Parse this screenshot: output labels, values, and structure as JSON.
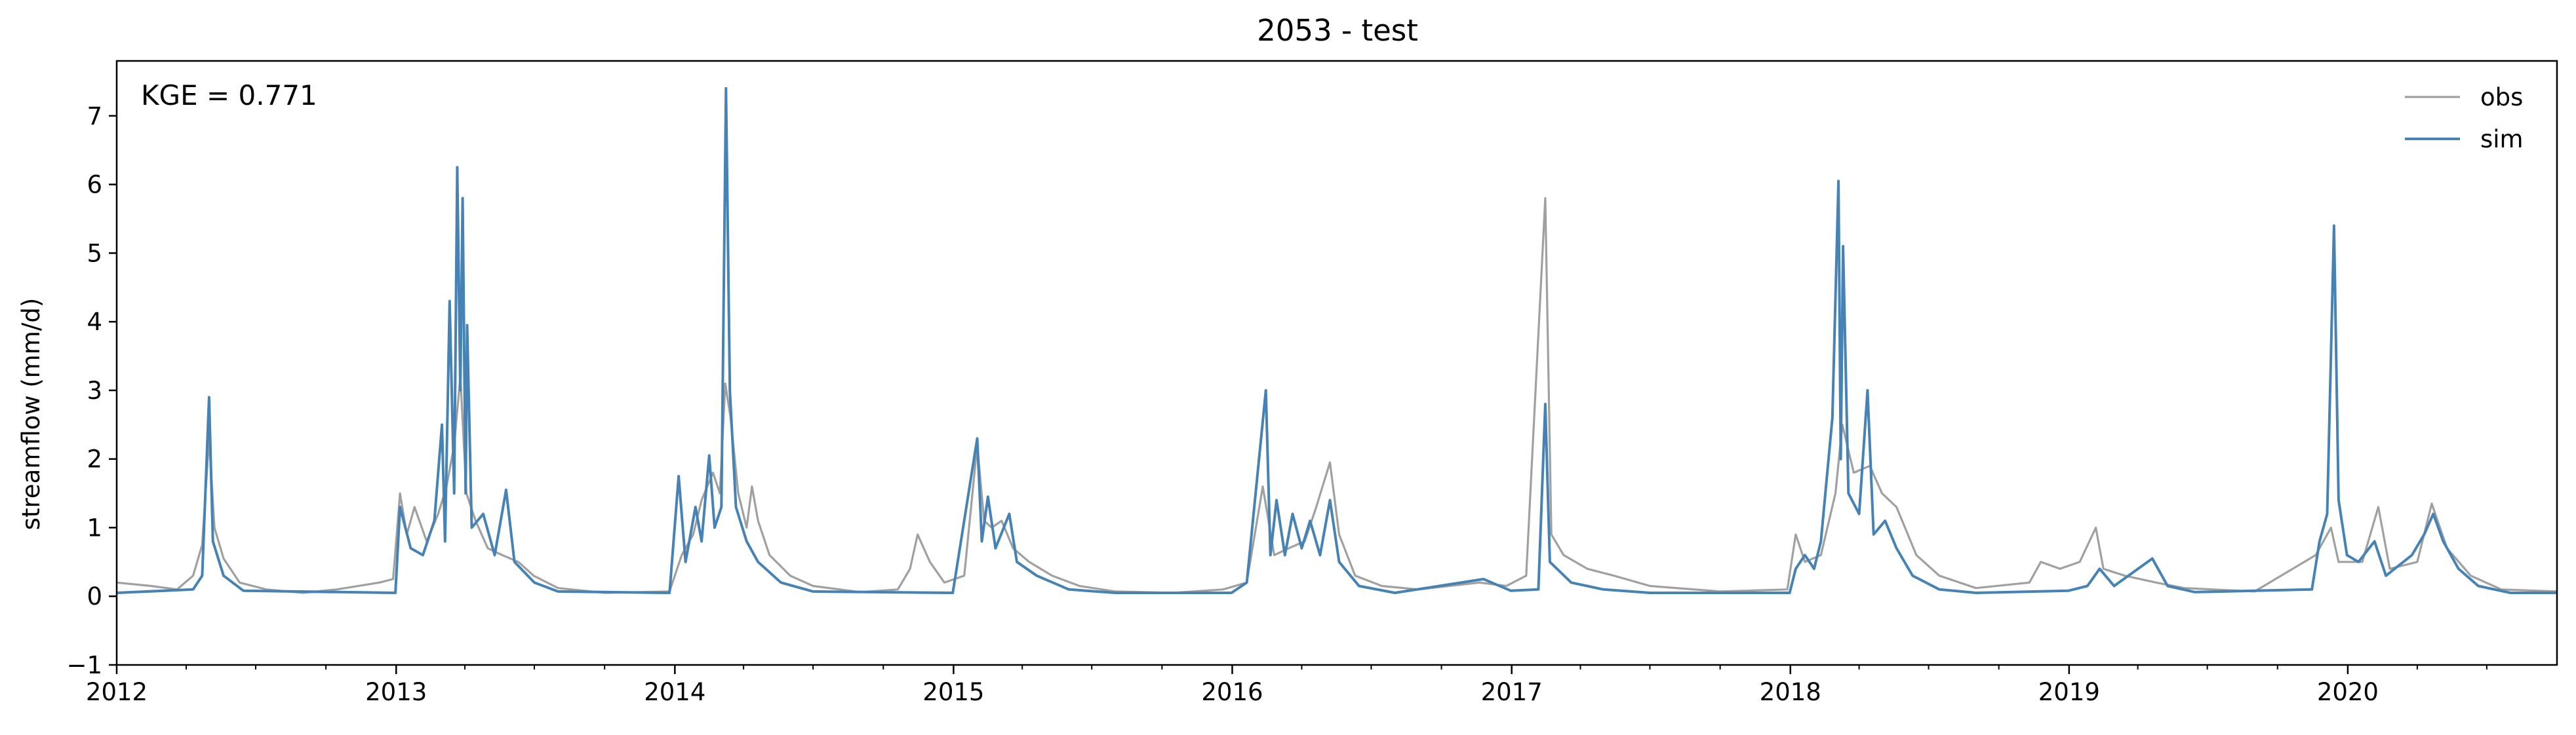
{
  "chart_data": {
    "type": "line",
    "title": "2053 - test",
    "xlabel": "",
    "ylabel": "streamflow (mm/d)",
    "annotation": "KGE = 0.771",
    "xlim": [
      "2012-01-01",
      "2020-10-01"
    ],
    "ylim": [
      -1,
      7.8
    ],
    "x_ticks": [
      "2012",
      "2013",
      "2014",
      "2015",
      "2016",
      "2017",
      "2018",
      "2019",
      "2020"
    ],
    "y_ticks": [
      "−1",
      "0",
      "1",
      "2",
      "3",
      "4",
      "5",
      "6",
      "7"
    ],
    "grid": false,
    "legend": {
      "position": "top-right",
      "entries": [
        "obs",
        "sim"
      ]
    },
    "colors": {
      "obs": "#a0a0a0",
      "sim": "#4682b4"
    },
    "series": [
      {
        "name": "obs",
        "points": [
          [
            "2012-01-01",
            0.2
          ],
          [
            "2012-02-15",
            0.15
          ],
          [
            "2012-03-20",
            0.1
          ],
          [
            "2012-04-10",
            0.3
          ],
          [
            "2012-04-22",
            0.75
          ],
          [
            "2012-05-01",
            2.3
          ],
          [
            "2012-05-08",
            1.0
          ],
          [
            "2012-05-20",
            0.55
          ],
          [
            "2012-06-10",
            0.2
          ],
          [
            "2012-07-15",
            0.1
          ],
          [
            "2012-09-01",
            0.05
          ],
          [
            "2012-10-15",
            0.1
          ],
          [
            "2012-12-10",
            0.2
          ],
          [
            "2012-12-28",
            0.25
          ],
          [
            "2013-01-06",
            1.5
          ],
          [
            "2013-01-15",
            0.9
          ],
          [
            "2013-01-25",
            1.3
          ],
          [
            "2013-02-10",
            0.8
          ],
          [
            "2013-02-25",
            1.2
          ],
          [
            "2013-03-08",
            1.6
          ],
          [
            "2013-03-18",
            2.2
          ],
          [
            "2013-03-26",
            3.2
          ],
          [
            "2013-04-03",
            1.5
          ],
          [
            "2013-04-15",
            1.1
          ],
          [
            "2013-05-01",
            0.7
          ],
          [
            "2013-05-20",
            0.6
          ],
          [
            "2013-06-10",
            0.5
          ],
          [
            "2013-06-30",
            0.3
          ],
          [
            "2013-08-01",
            0.12
          ],
          [
            "2013-10-01",
            0.05
          ],
          [
            "2013-12-25",
            0.07
          ],
          [
            "2014-01-10",
            0.6
          ],
          [
            "2014-01-25",
            0.9
          ],
          [
            "2014-02-05",
            1.4
          ],
          [
            "2014-02-20",
            1.8
          ],
          [
            "2014-03-01",
            1.5
          ],
          [
            "2014-03-08",
            3.1
          ],
          [
            "2014-03-15",
            2.6
          ],
          [
            "2014-03-25",
            1.5
          ],
          [
            "2014-04-05",
            1.0
          ],
          [
            "2014-04-12",
            1.6
          ],
          [
            "2014-04-20",
            1.1
          ],
          [
            "2014-05-05",
            0.6
          ],
          [
            "2014-06-01",
            0.3
          ],
          [
            "2014-07-01",
            0.15
          ],
          [
            "2014-09-01",
            0.06
          ],
          [
            "2014-10-20",
            0.1
          ],
          [
            "2014-11-05",
            0.4
          ],
          [
            "2014-11-15",
            0.9
          ],
          [
            "2014-12-01",
            0.5
          ],
          [
            "2014-12-20",
            0.2
          ],
          [
            "2015-01-15",
            0.3
          ],
          [
            "2015-02-01",
            2.2
          ],
          [
            "2015-02-10",
            1.1
          ],
          [
            "2015-02-20",
            1.0
          ],
          [
            "2015-03-05",
            1.1
          ],
          [
            "2015-03-20",
            0.7
          ],
          [
            "2015-04-10",
            0.5
          ],
          [
            "2015-05-10",
            0.3
          ],
          [
            "2015-06-15",
            0.15
          ],
          [
            "2015-08-01",
            0.07
          ],
          [
            "2015-10-15",
            0.05
          ],
          [
            "2015-12-20",
            0.1
          ],
          [
            "2016-01-20",
            0.2
          ],
          [
            "2016-02-10",
            1.6
          ],
          [
            "2016-02-25",
            0.6
          ],
          [
            "2016-03-15",
            0.7
          ],
          [
            "2016-04-05",
            0.8
          ],
          [
            "2016-04-20",
            1.3
          ],
          [
            "2016-05-01",
            1.7
          ],
          [
            "2016-05-08",
            1.95
          ],
          [
            "2016-05-20",
            0.9
          ],
          [
            "2016-06-10",
            0.3
          ],
          [
            "2016-07-15",
            0.15
          ],
          [
            "2016-09-01",
            0.1
          ],
          [
            "2016-11-20",
            0.2
          ],
          [
            "2016-12-25",
            0.15
          ],
          [
            "2017-01-20",
            0.3
          ],
          [
            "2017-02-14",
            5.8
          ],
          [
            "2017-02-22",
            0.9
          ],
          [
            "2017-03-10",
            0.6
          ],
          [
            "2017-04-10",
            0.4
          ],
          [
            "2017-05-15",
            0.3
          ],
          [
            "2017-07-01",
            0.15
          ],
          [
            "2017-10-01",
            0.07
          ],
          [
            "2017-12-28",
            0.1
          ],
          [
            "2018-01-08",
            0.9
          ],
          [
            "2018-01-20",
            0.5
          ],
          [
            "2018-02-10",
            0.6
          ],
          [
            "2018-03-01",
            1.5
          ],
          [
            "2018-03-10",
            2.5
          ],
          [
            "2018-03-25",
            1.8
          ],
          [
            "2018-04-15",
            1.9
          ],
          [
            "2018-05-01",
            1.5
          ],
          [
            "2018-05-20",
            1.3
          ],
          [
            "2018-06-15",
            0.6
          ],
          [
            "2018-07-15",
            0.3
          ],
          [
            "2018-09-01",
            0.12
          ],
          [
            "2018-11-10",
            0.2
          ],
          [
            "2018-11-25",
            0.5
          ],
          [
            "2018-12-20",
            0.4
          ],
          [
            "2019-01-15",
            0.5
          ],
          [
            "2019-02-05",
            1.0
          ],
          [
            "2019-02-15",
            0.4
          ],
          [
            "2019-03-15",
            0.3
          ],
          [
            "2019-04-25",
            0.2
          ],
          [
            "2019-06-01",
            0.12
          ],
          [
            "2019-09-01",
            0.07
          ],
          [
            "2019-11-20",
            0.6
          ],
          [
            "2019-12-10",
            1.0
          ],
          [
            "2019-12-20",
            0.5
          ],
          [
            "2020-01-20",
            0.5
          ],
          [
            "2020-02-10",
            1.3
          ],
          [
            "2020-02-25",
            0.4
          ],
          [
            "2020-04-01",
            0.5
          ],
          [
            "2020-04-20",
            1.35
          ],
          [
            "2020-05-10",
            0.7
          ],
          [
            "2020-06-10",
            0.3
          ],
          [
            "2020-07-20",
            0.1
          ],
          [
            "2020-10-01",
            0.07
          ]
        ]
      },
      {
        "name": "sim",
        "points": [
          [
            "2012-01-01",
            0.05
          ],
          [
            "2012-04-10",
            0.1
          ],
          [
            "2012-04-22",
            0.3
          ],
          [
            "2012-05-01",
            2.9
          ],
          [
            "2012-05-06",
            0.8
          ],
          [
            "2012-05-20",
            0.3
          ],
          [
            "2012-06-15",
            0.08
          ],
          [
            "2012-12-31",
            0.05
          ],
          [
            "2013-01-06",
            1.3
          ],
          [
            "2013-01-20",
            0.7
          ],
          [
            "2013-02-05",
            0.6
          ],
          [
            "2013-02-20",
            1.1
          ],
          [
            "2013-03-02",
            2.5
          ],
          [
            "2013-03-06",
            0.8
          ],
          [
            "2013-03-12",
            4.3
          ],
          [
            "2013-03-18",
            1.5
          ],
          [
            "2013-03-22",
            6.25
          ],
          [
            "2013-03-26",
            3.0
          ],
          [
            "2013-03-29",
            5.8
          ],
          [
            "2013-04-02",
            1.5
          ],
          [
            "2013-04-04",
            3.95
          ],
          [
            "2013-04-10",
            1.0
          ],
          [
            "2013-04-25",
            1.2
          ],
          [
            "2013-05-10",
            0.6
          ],
          [
            "2013-05-25",
            1.55
          ],
          [
            "2013-06-05",
            0.5
          ],
          [
            "2013-07-01",
            0.2
          ],
          [
            "2013-08-01",
            0.07
          ],
          [
            "2013-12-25",
            0.05
          ],
          [
            "2014-01-06",
            1.75
          ],
          [
            "2014-01-15",
            0.5
          ],
          [
            "2014-01-28",
            1.3
          ],
          [
            "2014-02-05",
            0.8
          ],
          [
            "2014-02-15",
            2.05
          ],
          [
            "2014-02-22",
            1.0
          ],
          [
            "2014-03-03",
            1.3
          ],
          [
            "2014-03-09",
            7.4
          ],
          [
            "2014-03-14",
            3.0
          ],
          [
            "2014-03-22",
            1.3
          ],
          [
            "2014-04-05",
            0.8
          ],
          [
            "2014-04-20",
            0.5
          ],
          [
            "2014-05-20",
            0.2
          ],
          [
            "2014-07-01",
            0.07
          ],
          [
            "2014-12-31",
            0.05
          ],
          [
            "2015-02-01",
            2.3
          ],
          [
            "2015-02-07",
            0.8
          ],
          [
            "2015-02-15",
            1.45
          ],
          [
            "2015-02-25",
            0.7
          ],
          [
            "2015-03-15",
            1.2
          ],
          [
            "2015-03-25",
            0.5
          ],
          [
            "2015-04-20",
            0.3
          ],
          [
            "2015-06-01",
            0.1
          ],
          [
            "2015-08-01",
            0.05
          ],
          [
            "2015-12-31",
            0.05
          ],
          [
            "2016-01-20",
            0.2
          ],
          [
            "2016-02-14",
            3.0
          ],
          [
            "2016-02-20",
            0.6
          ],
          [
            "2016-02-28",
            1.4
          ],
          [
            "2016-03-10",
            0.6
          ],
          [
            "2016-03-20",
            1.2
          ],
          [
            "2016-04-01",
            0.7
          ],
          [
            "2016-04-12",
            1.1
          ],
          [
            "2016-04-25",
            0.6
          ],
          [
            "2016-05-08",
            1.4
          ],
          [
            "2016-05-20",
            0.5
          ],
          [
            "2016-06-15",
            0.15
          ],
          [
            "2016-08-01",
            0.05
          ],
          [
            "2016-11-25",
            0.25
          ],
          [
            "2016-12-31",
            0.08
          ],
          [
            "2017-02-05",
            0.1
          ],
          [
            "2017-02-14",
            2.8
          ],
          [
            "2017-02-20",
            0.5
          ],
          [
            "2017-03-20",
            0.2
          ],
          [
            "2017-05-01",
            0.1
          ],
          [
            "2017-07-01",
            0.05
          ],
          [
            "2017-12-31",
            0.05
          ],
          [
            "2018-01-08",
            0.4
          ],
          [
            "2018-01-20",
            0.6
          ],
          [
            "2018-02-01",
            0.4
          ],
          [
            "2018-02-10",
            0.8
          ],
          [
            "2018-02-25",
            2.6
          ],
          [
            "2018-03-05",
            6.05
          ],
          [
            "2018-03-08",
            2.0
          ],
          [
            "2018-03-11",
            5.1
          ],
          [
            "2018-03-18",
            1.5
          ],
          [
            "2018-04-01",
            1.2
          ],
          [
            "2018-04-12",
            3.0
          ],
          [
            "2018-04-20",
            0.9
          ],
          [
            "2018-05-05",
            1.1
          ],
          [
            "2018-05-20",
            0.7
          ],
          [
            "2018-06-10",
            0.3
          ],
          [
            "2018-07-15",
            0.1
          ],
          [
            "2018-09-01",
            0.05
          ],
          [
            "2018-12-31",
            0.08
          ],
          [
            "2019-01-25",
            0.15
          ],
          [
            "2019-02-10",
            0.4
          ],
          [
            "2019-03-01",
            0.15
          ],
          [
            "2019-04-20",
            0.55
          ],
          [
            "2019-05-10",
            0.15
          ],
          [
            "2019-06-15",
            0.06
          ],
          [
            "2019-11-15",
            0.1
          ],
          [
            "2019-11-25",
            0.8
          ],
          [
            "2019-12-05",
            1.2
          ],
          [
            "2019-12-14",
            5.4
          ],
          [
            "2019-12-20",
            1.4
          ],
          [
            "2019-12-31",
            0.6
          ],
          [
            "2020-01-15",
            0.5
          ],
          [
            "2020-02-05",
            0.8
          ],
          [
            "2020-02-20",
            0.3
          ],
          [
            "2020-03-25",
            0.6
          ],
          [
            "2020-04-10",
            0.9
          ],
          [
            "2020-04-22",
            1.2
          ],
          [
            "2020-05-05",
            0.8
          ],
          [
            "2020-05-25",
            0.4
          ],
          [
            "2020-06-20",
            0.15
          ],
          [
            "2020-08-01",
            0.05
          ],
          [
            "2020-10-01",
            0.05
          ]
        ]
      }
    ]
  }
}
